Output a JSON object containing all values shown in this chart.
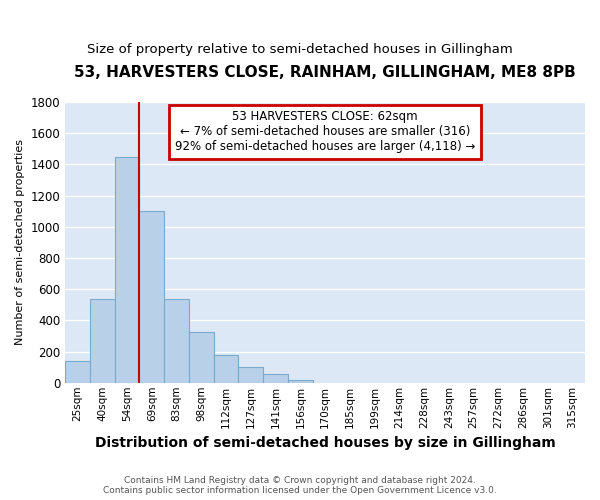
{
  "title1": "53, HARVESTERS CLOSE, RAINHAM, GILLINGHAM, ME8 8PB",
  "title2": "Size of property relative to semi-detached houses in Gillingham",
  "xlabel": "Distribution of semi-detached houses by size in Gillingham",
  "ylabel": "Number of semi-detached properties",
  "categories": [
    "25sqm",
    "40sqm",
    "54sqm",
    "69sqm",
    "83sqm",
    "98sqm",
    "112sqm",
    "127sqm",
    "141sqm",
    "156sqm",
    "170sqm",
    "185sqm",
    "199sqm",
    "214sqm",
    "228sqm",
    "243sqm",
    "257sqm",
    "272sqm",
    "286sqm",
    "301sqm",
    "315sqm"
  ],
  "values": [
    140,
    540,
    1450,
    1100,
    540,
    325,
    175,
    100,
    55,
    20,
    0,
    0,
    0,
    0,
    0,
    0,
    0,
    0,
    0,
    0,
    0
  ],
  "bar_color": "#b8d0e8",
  "bar_edge_color": "#7aaace",
  "vline_color": "#cc0000",
  "annotation_text": "53 HARVESTERS CLOSE: 62sqm\n← 7% of semi-detached houses are smaller (316)\n92% of semi-detached houses are larger (4,118) →",
  "annotation_box_color": "#cc0000",
  "ylim": [
    0,
    1800
  ],
  "yticks": [
    0,
    200,
    400,
    600,
    800,
    1000,
    1200,
    1400,
    1600,
    1800
  ],
  "bg_color": "#dce8f5",
  "title1_fontsize": 11,
  "title2_fontsize": 9.5,
  "xlabel_fontsize": 10,
  "ylabel_fontsize": 8,
  "footer1": "Contains HM Land Registry data © Crown copyright and database right 2024.",
  "footer2": "Contains public sector information licensed under the Open Government Licence v3.0."
}
